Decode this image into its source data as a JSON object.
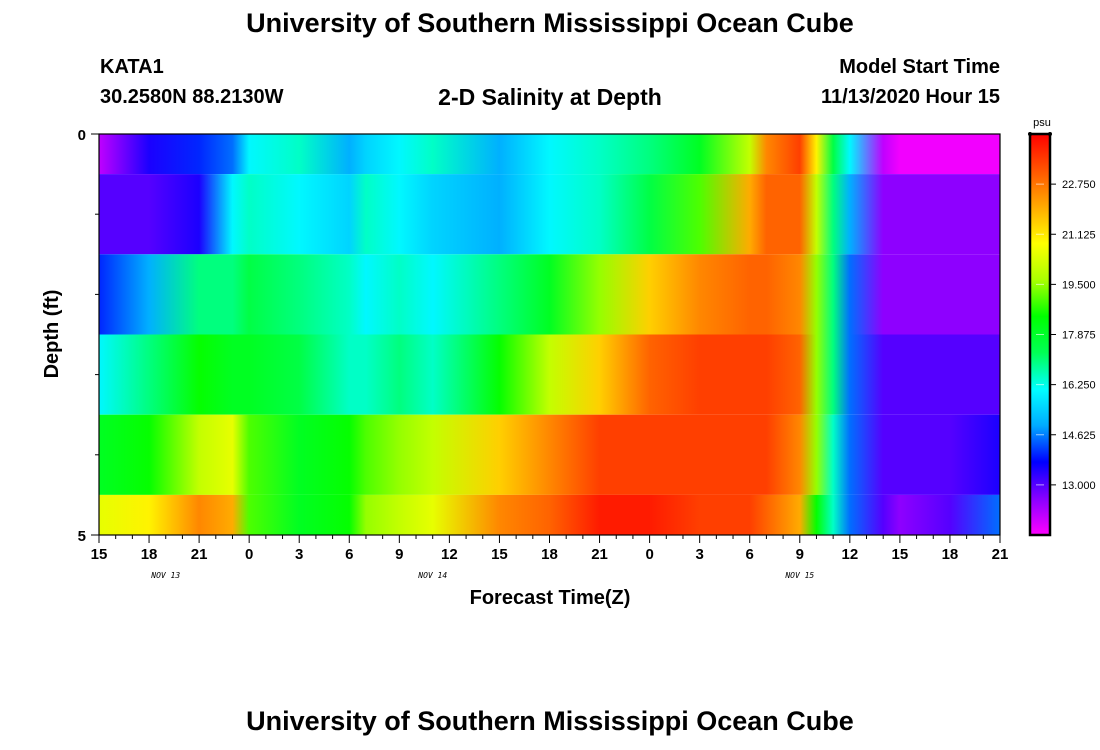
{
  "header": {
    "title": "University of Southern Mississippi Ocean Cube",
    "station": "KATA1",
    "coords": "30.2580N 88.2130W",
    "chart_title": "2-D Salinity at Depth",
    "start_label": "Model Start Time",
    "start_value": "11/13/2020 Hour 15"
  },
  "footer": {
    "title": "University of Southern Mississippi Ocean Cube"
  },
  "colors": {
    "scale": [
      "#ff00ff",
      "#8800ff",
      "#0000ff",
      "#00aaff",
      "#00ffff",
      "#00ff55",
      "#00ff00",
      "#aaff00",
      "#ffff00",
      "#ffaa00",
      "#ff5500",
      "#ff0000"
    ]
  },
  "chart_data": {
    "type": "heatmap",
    "xlabel": "Forecast Time(Z)",
    "ylabel": "Depth (ft)",
    "x_tick_labels": [
      "15",
      "18",
      "21",
      "0",
      "3",
      "6",
      "9",
      "12",
      "15",
      "18",
      "21",
      "0",
      "3",
      "6",
      "9",
      "12",
      "15",
      "18",
      "21"
    ],
    "date_labels": [
      {
        "text": "NOV 13",
        "hour": 4
      },
      {
        "text": "NOV 14",
        "hour": 20
      },
      {
        "text": "NOV 15",
        "hour": 42
      }
    ],
    "xlim": [
      0,
      54
    ],
    "y_tick_labels": [
      "0",
      "5"
    ],
    "ylim": [
      0,
      5
    ],
    "colorbar": {
      "unit": "psu",
      "min": 11.375,
      "max": 24.375,
      "ticks": [
        "22.750",
        "21.125",
        "19.500",
        "17.875",
        "16.250",
        "14.625",
        "13.000"
      ],
      "tick_values": [
        22.75,
        21.125,
        19.5,
        17.875,
        16.25,
        14.625,
        13.0
      ]
    },
    "hours": [
      0,
      3,
      6,
      8,
      9,
      12,
      15,
      16,
      18,
      20,
      24,
      27,
      30,
      33,
      36,
      39,
      40,
      42,
      43,
      44,
      45,
      47,
      48,
      51,
      54
    ],
    "depth_rows": [
      {
        "depth": "0.0-0.5",
        "values": [
          12.0,
          13.5,
          14.0,
          14.5,
          16.0,
          16.5,
          15.0,
          15.5,
          16.0,
          16.5,
          15.0,
          16.0,
          16.5,
          17.0,
          18.0,
          20.0,
          22.5,
          23.5,
          21.0,
          17.5,
          16.0,
          12.0,
          11.5,
          11.5,
          11.5
        ]
      },
      {
        "depth": "0.5-1.5",
        "values": [
          13.0,
          13.0,
          13.5,
          16.0,
          16.5,
          16.0,
          15.5,
          16.5,
          16.0,
          15.5,
          15.0,
          16.0,
          16.5,
          17.5,
          19.0,
          22.0,
          23.0,
          23.0,
          20.0,
          17.0,
          15.0,
          12.5,
          12.5,
          12.5,
          12.5
        ]
      },
      {
        "depth": "1.5-2.5",
        "values": [
          14.0,
          15.0,
          17.0,
          17.0,
          17.5,
          17.0,
          16.5,
          16.0,
          16.5,
          16.0,
          17.0,
          18.0,
          19.5,
          21.5,
          22.5,
          23.0,
          23.0,
          22.5,
          19.5,
          17.0,
          14.5,
          12.5,
          12.5,
          12.5,
          12.5
        ]
      },
      {
        "depth": "2.5-3.5",
        "values": [
          16.0,
          17.0,
          18.5,
          18.0,
          18.0,
          17.5,
          16.5,
          16.5,
          17.0,
          16.5,
          18.5,
          20.0,
          21.5,
          23.0,
          23.5,
          23.5,
          23.5,
          23.0,
          19.5,
          17.0,
          14.5,
          13.0,
          13.0,
          13.0,
          13.0
        ]
      },
      {
        "depth": "3.5-4.5",
        "values": [
          18.0,
          18.5,
          20.0,
          20.5,
          19.0,
          18.0,
          18.5,
          19.0,
          19.5,
          20.0,
          21.5,
          22.5,
          23.5,
          23.5,
          23.5,
          23.5,
          23.5,
          22.5,
          19.5,
          16.5,
          14.5,
          13.0,
          13.0,
          13.0,
          13.5
        ]
      },
      {
        "depth": "4.5-5.0",
        "values": [
          20.5,
          21.0,
          22.5,
          22.0,
          19.0,
          18.0,
          18.5,
          19.5,
          20.0,
          20.5,
          22.5,
          23.0,
          24.0,
          24.0,
          23.5,
          23.5,
          23.0,
          22.0,
          18.5,
          16.5,
          14.5,
          13.0,
          12.5,
          13.0,
          14.5
        ]
      }
    ]
  }
}
